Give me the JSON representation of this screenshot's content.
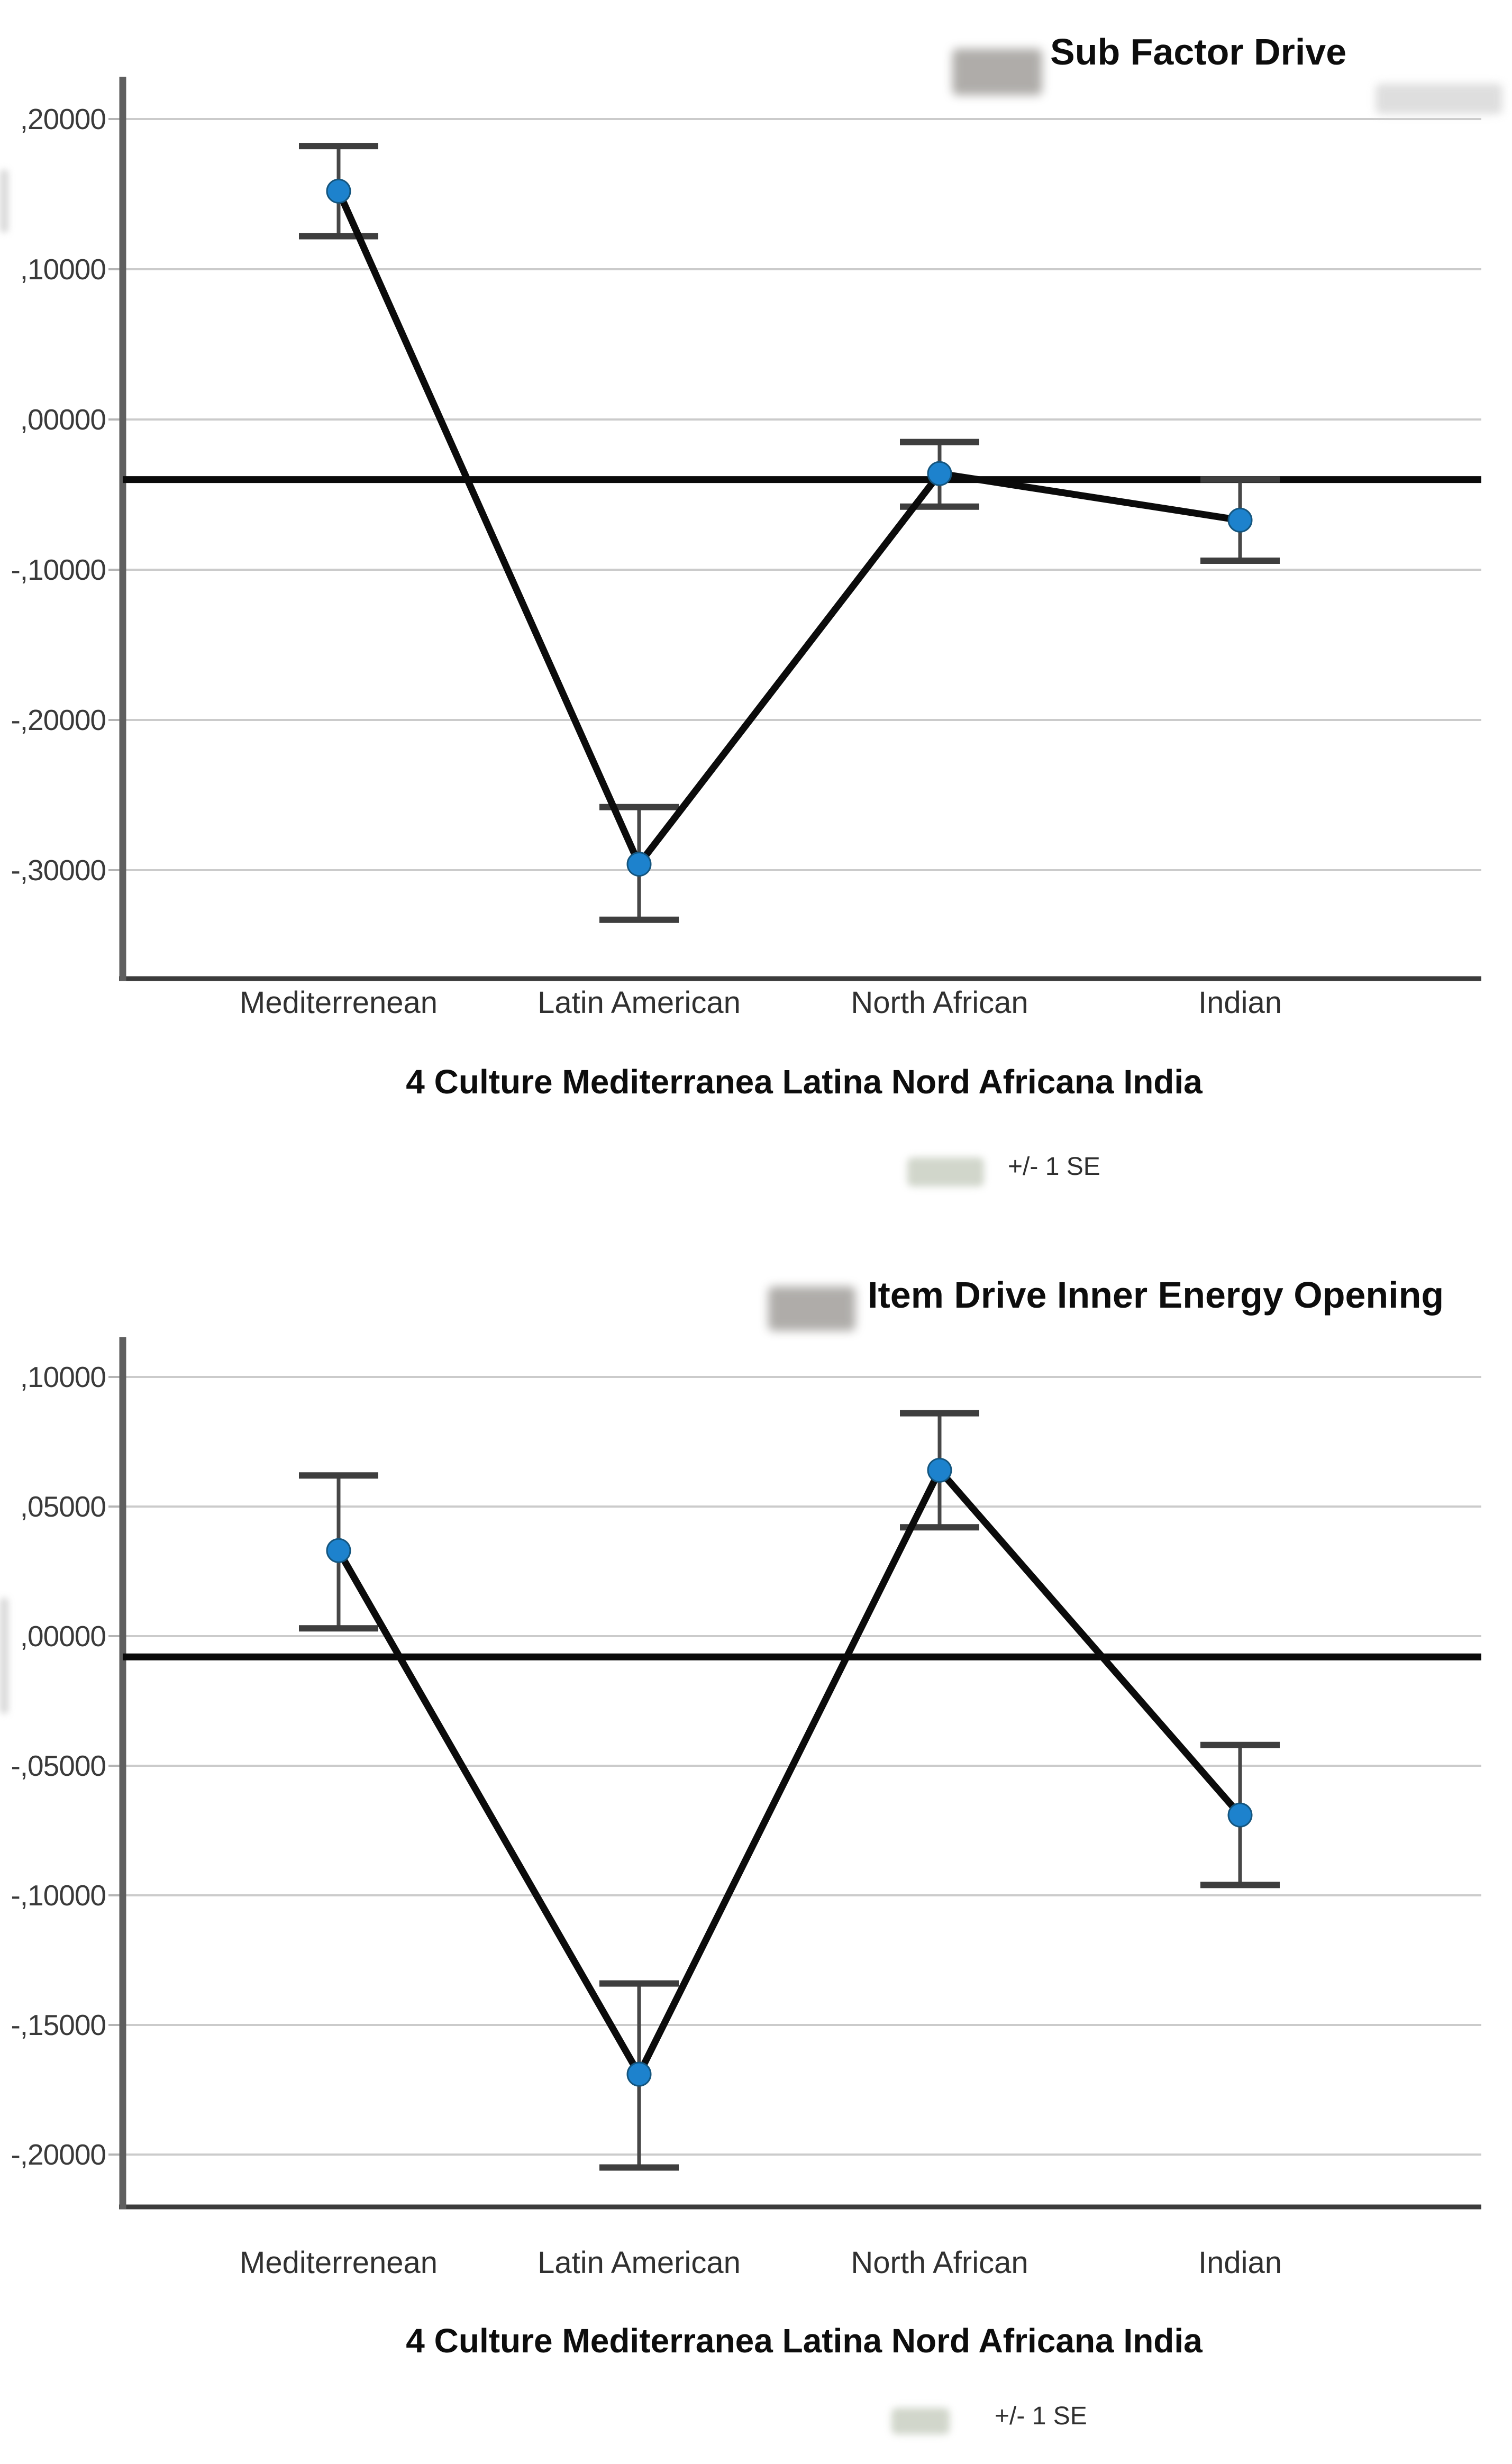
{
  "chart_data": [
    {
      "type": "line",
      "subtype": "point-estimates-with-error-bars",
      "title": "Sub Factor Drive",
      "title_prefix_redacted": "blurred text before title",
      "categories": [
        "Mediterrenean",
        "Latin American",
        "North African",
        "Indian"
      ],
      "series": [
        {
          "name": "mean",
          "values": [
            0.152,
            -0.296,
            -0.036,
            -0.067
          ]
        }
      ],
      "error_high": [
        0.182,
        -0.258,
        -0.015,
        -0.04
      ],
      "error_low": [
        0.122,
        -0.333,
        -0.058,
        -0.094
      ],
      "reference_line": -0.04,
      "ytick_labels": [
        ",20000",
        ",10000",
        ",00000",
        "-,10000",
        "-,20000",
        "-,30000"
      ],
      "ytick_values": [
        0.2,
        0.1,
        0.0,
        -0.1,
        -0.2,
        -0.3
      ],
      "ylim": [
        -0.372,
        0.228
      ],
      "xlabel": "4 Culture Mediterranea Latina Nord Africana India",
      "ylabel": "",
      "legend_label": "+/- 1 SE",
      "legend_position": "bottom-center",
      "grid": true,
      "decimal_style": "comma",
      "marker_color": "#1d82cd",
      "line_color": "#0b0b0b",
      "errbar_color": "#3e3e3e"
    },
    {
      "type": "line",
      "subtype": "point-estimates-with-error-bars",
      "title": "Item Drive Inner Energy Opening",
      "title_prefix_redacted": "blurred text before title",
      "categories": [
        "Mediterrenean",
        "Latin American",
        "North African",
        "Indian"
      ],
      "series": [
        {
          "name": "mean",
          "values": [
            0.033,
            -0.169,
            0.064,
            -0.069
          ]
        }
      ],
      "error_high": [
        0.062,
        -0.134,
        0.086,
        -0.042
      ],
      "error_low": [
        0.003,
        -0.205,
        0.042,
        -0.096
      ],
      "reference_line": -0.008,
      "ytick_labels": [
        ",10000",
        ",05000",
        ",00000",
        "-,05000",
        "-,10000",
        "-,15000",
        "-,20000"
      ],
      "ytick_values": [
        0.1,
        0.05,
        0.0,
        -0.05,
        -0.1,
        -0.15,
        -0.2
      ],
      "ylim": [
        -0.22,
        0.115
      ],
      "xlabel": "4 Culture Mediterranea Latina Nord Africana India",
      "ylabel": "",
      "legend_label": "+/- 1 SE",
      "legend_position": "bottom-center",
      "grid": true,
      "decimal_style": "comma",
      "marker_color": "#1d82cd",
      "line_color": "#0b0b0b",
      "errbar_color": "#3e3e3e"
    }
  ]
}
